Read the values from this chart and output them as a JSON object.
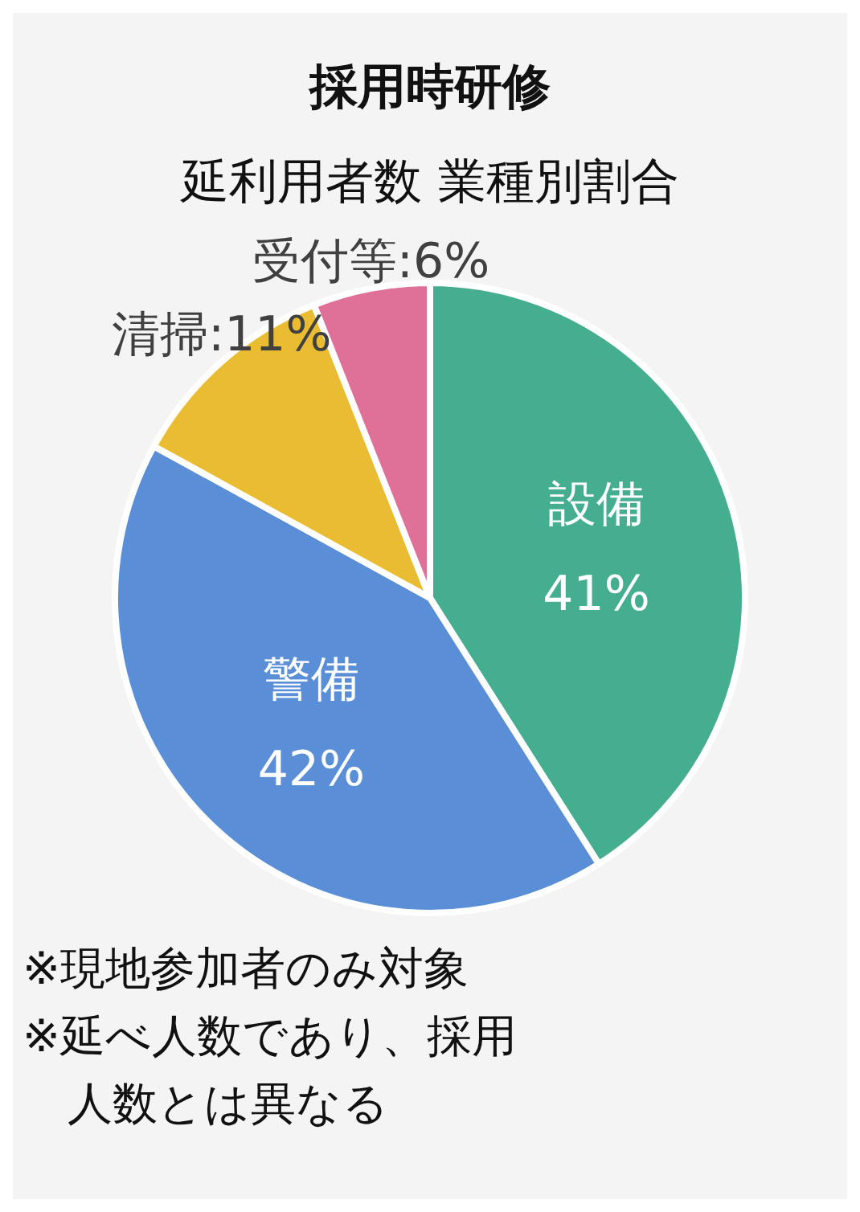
{
  "chart_data": {
    "type": "pie",
    "title": "採用時研修",
    "subtitle": "延利用者数 業種別割合",
    "categories": [
      "設備",
      "警備",
      "清掃",
      "受付等"
    ],
    "values": [
      41,
      42,
      11,
      6
    ],
    "colors": [
      "#45ae90",
      "#5a8fd8",
      "#e9bc32",
      "#df7198"
    ],
    "value_labels": [
      "41%",
      "42%",
      "11%",
      "6%"
    ],
    "legend": false,
    "annotations": [
      "※現地参加者のみ対象",
      "※延べ人数であり、採用人数とは異なる"
    ]
  }
}
